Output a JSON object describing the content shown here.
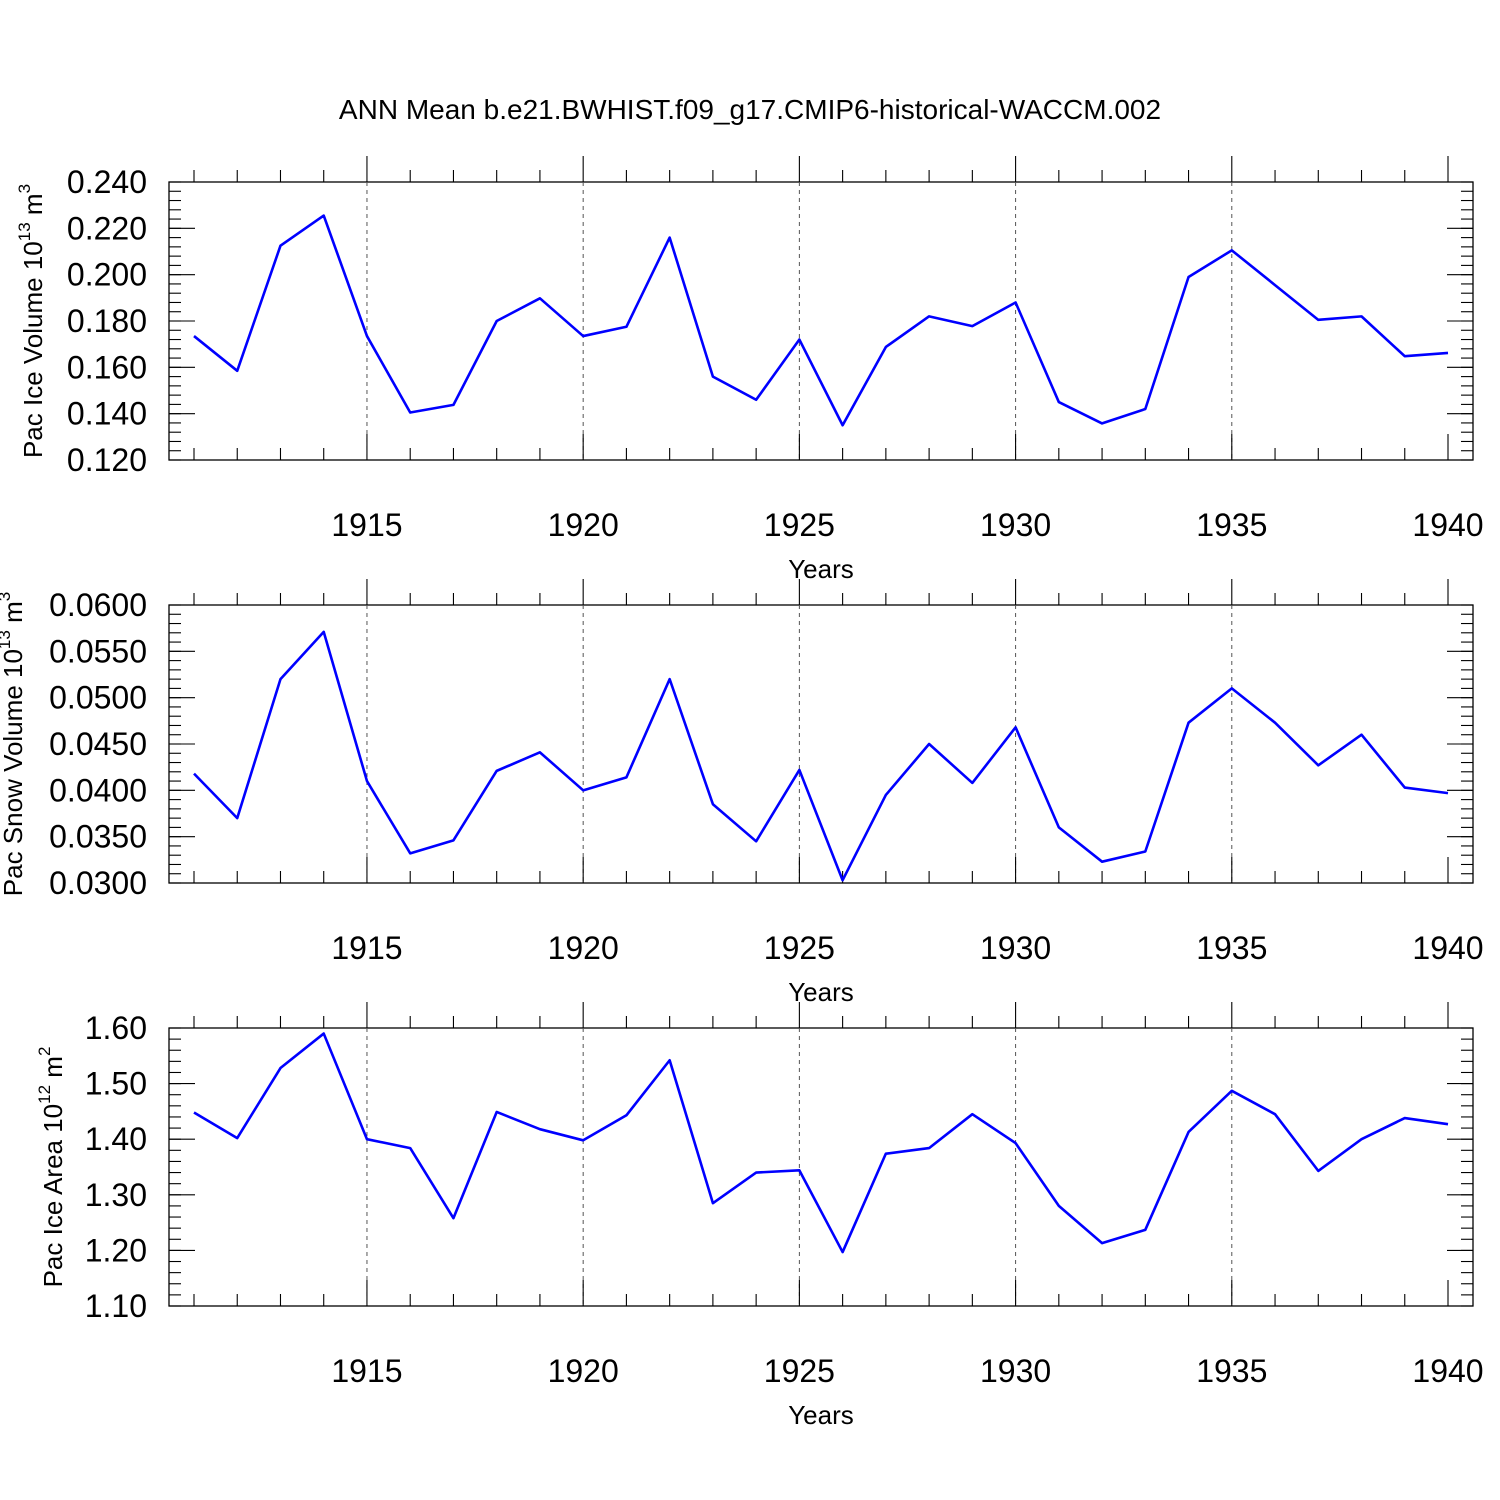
{
  "chart_data": [
    {
      "type": "line",
      "title": "ANN Mean b.e21.BWHIST.f09_g17.CMIP6-historical-WACCM.002",
      "xlabel": "Years",
      "ylabel": {
        "text": "Pac Ice Volume 10",
        "exponent": "13",
        "unit": " m",
        "unit_exponent": "3"
      },
      "x": [
        1911,
        1912,
        1913,
        1914,
        1915,
        1916,
        1917,
        1918,
        1919,
        1920,
        1921,
        1922,
        1923,
        1924,
        1925,
        1926,
        1927,
        1928,
        1929,
        1930,
        1931,
        1932,
        1933,
        1934,
        1935,
        1936,
        1937,
        1938,
        1939,
        1940
      ],
      "series": [
        {
          "values": [
            0.1735,
            0.1585,
            0.2125,
            0.2255,
            0.1735,
            0.1405,
            0.1438,
            0.18,
            0.1898,
            0.1735,
            0.1775,
            0.216,
            0.156,
            0.146,
            0.172,
            0.135,
            0.1688,
            0.182,
            0.1778,
            0.188,
            0.145,
            0.1358,
            0.142,
            0.199,
            0.2105,
            0.1955,
            0.1805,
            0.182,
            0.1648,
            0.1662
          ],
          "color": "#0000ff"
        }
      ],
      "xlim": [
        1911,
        1940
      ],
      "ylim": [
        0.12,
        0.24
      ],
      "x_ticks": [
        1915,
        1920,
        1925,
        1930,
        1935,
        1940
      ],
      "y_ticks": [
        0.12,
        0.14,
        0.16,
        0.18,
        0.2,
        0.22,
        0.24
      ],
      "y_tick_labels": [
        "0.120",
        "0.140",
        "0.160",
        "0.180",
        "0.200",
        "0.220",
        "0.240"
      ],
      "y_minor_step": 0.004,
      "grid": "dashed vertical at major x ticks"
    },
    {
      "type": "line",
      "title": "",
      "xlabel": "Years",
      "ylabel": {
        "text": "Pac Snow Volume 10",
        "exponent": "13",
        "unit": " m",
        "unit_exponent": "3"
      },
      "x": [
        1911,
        1912,
        1913,
        1914,
        1915,
        1916,
        1917,
        1918,
        1919,
        1920,
        1921,
        1922,
        1923,
        1924,
        1925,
        1926,
        1927,
        1928,
        1929,
        1930,
        1931,
        1932,
        1933,
        1934,
        1935,
        1936,
        1937,
        1938,
        1939,
        1940
      ],
      "series": [
        {
          "values": [
            0.0418,
            0.037,
            0.052,
            0.0571,
            0.041,
            0.0332,
            0.0346,
            0.0421,
            0.0441,
            0.04,
            0.0414,
            0.052,
            0.0385,
            0.0345,
            0.0422,
            0.0303,
            0.0395,
            0.045,
            0.0408,
            0.0468,
            0.036,
            0.0323,
            0.0334,
            0.0473,
            0.051,
            0.0473,
            0.0427,
            0.046,
            0.0403,
            0.0397
          ],
          "color": "#0000ff"
        }
      ],
      "xlim": [
        1911,
        1940
      ],
      "ylim": [
        0.03,
        0.06
      ],
      "x_ticks": [
        1915,
        1920,
        1925,
        1930,
        1935,
        1940
      ],
      "y_ticks": [
        0.03,
        0.035,
        0.04,
        0.045,
        0.05,
        0.055,
        0.06
      ],
      "y_tick_labels": [
        "0.0300",
        "0.0350",
        "0.0400",
        "0.0450",
        "0.0500",
        "0.0550",
        "0.0600"
      ],
      "y_minor_step": 0.001,
      "grid": "dashed vertical at major x ticks"
    },
    {
      "type": "line",
      "title": "",
      "xlabel": "Years",
      "ylabel": {
        "text": "Pac Ice Area 10",
        "exponent": "12",
        "unit": " m",
        "unit_exponent": "2"
      },
      "x": [
        1911,
        1912,
        1913,
        1914,
        1915,
        1916,
        1917,
        1918,
        1919,
        1920,
        1921,
        1922,
        1923,
        1924,
        1925,
        1926,
        1927,
        1928,
        1929,
        1930,
        1931,
        1932,
        1933,
        1934,
        1935,
        1936,
        1937,
        1938,
        1939,
        1940
      ],
      "series": [
        {
          "values": [
            1.448,
            1.402,
            1.528,
            1.59,
            1.4,
            1.384,
            1.258,
            1.449,
            1.418,
            1.398,
            1.443,
            1.542,
            1.285,
            1.34,
            1.344,
            1.197,
            1.374,
            1.384,
            1.445,
            1.393,
            1.28,
            1.213,
            1.237,
            1.413,
            1.487,
            1.445,
            1.343,
            1.4,
            1.438,
            1.427
          ],
          "color": "#0000ff"
        }
      ],
      "xlim": [
        1911,
        1940
      ],
      "ylim": [
        1.1,
        1.6
      ],
      "x_ticks": [
        1915,
        1920,
        1925,
        1930,
        1935,
        1940
      ],
      "y_ticks": [
        1.1,
        1.2,
        1.3,
        1.4,
        1.5,
        1.6
      ],
      "y_tick_labels": [
        "1.10",
        "1.20",
        "1.30",
        "1.40",
        "1.50",
        "1.60"
      ],
      "y_minor_step": 0.02,
      "grid": "dashed vertical at major x ticks"
    }
  ]
}
